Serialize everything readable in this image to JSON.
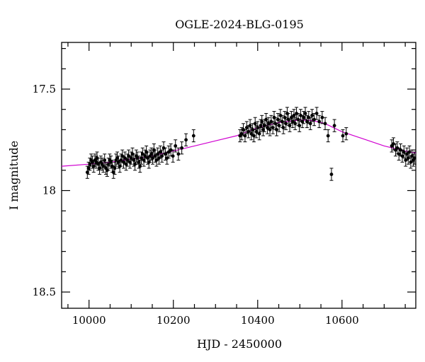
{
  "chart_data": {
    "type": "scatter",
    "title": "OGLE-2024-BLG-0195",
    "xlabel": "HJD - 2450000",
    "ylabel": "I magnitude",
    "xlim": [
      9935,
      10775
    ],
    "ylim": [
      18.58,
      17.27
    ],
    "y_inverted": true,
    "x_ticks": [
      10000,
      10200,
      10400,
      10600
    ],
    "x_tick_labels": [
      "10000",
      "10200",
      "10400",
      "10600"
    ],
    "y_ticks": [
      17.5,
      18,
      18.5
    ],
    "y_tick_labels": [
      "17.5",
      "18",
      "18.5"
    ],
    "grid": false,
    "colors": {
      "points": "#000000",
      "model": "#d000d0",
      "frame": "#000000"
    },
    "series": [
      {
        "type": "scatter",
        "error": 0.03,
        "points": [
          [
            9996,
            17.91
          ],
          [
            9999,
            17.89
          ],
          [
            10002,
            17.87
          ],
          [
            10005,
            17.85
          ],
          [
            10008,
            17.86
          ],
          [
            10011,
            17.88
          ],
          [
            10014,
            17.85
          ],
          [
            10017,
            17.86
          ],
          [
            10019,
            17.84
          ],
          [
            10022,
            17.87
          ],
          [
            10025,
            17.89
          ],
          [
            10028,
            17.86
          ],
          [
            10031,
            17.87
          ],
          [
            10034,
            17.88
          ],
          [
            10037,
            17.85
          ],
          [
            10040,
            17.89
          ],
          [
            10043,
            17.9
          ],
          [
            10046,
            17.87
          ],
          [
            10049,
            17.85
          ],
          [
            10052,
            17.86
          ],
          [
            10055,
            17.88
          ],
          [
            10058,
            17.91
          ],
          [
            10061,
            17.89
          ],
          [
            10064,
            17.85
          ],
          [
            10067,
            17.84
          ],
          [
            10070,
            17.86
          ],
          [
            10073,
            17.88
          ],
          [
            10076,
            17.85
          ],
          [
            10079,
            17.83
          ],
          [
            10082,
            17.86
          ],
          [
            10085,
            17.84
          ],
          [
            10088,
            17.87
          ],
          [
            10091,
            17.85
          ],
          [
            10094,
            17.83
          ],
          [
            10097,
            17.86
          ],
          [
            10100,
            17.84
          ],
          [
            10103,
            17.82
          ],
          [
            10106,
            17.85
          ],
          [
            10109,
            17.87
          ],
          [
            10112,
            17.83
          ],
          [
            10115,
            17.84
          ],
          [
            10118,
            17.86
          ],
          [
            10121,
            17.88
          ],
          [
            10124,
            17.84
          ],
          [
            10127,
            17.82
          ],
          [
            10130,
            17.85
          ],
          [
            10133,
            17.83
          ],
          [
            10136,
            17.81
          ],
          [
            10139,
            17.84
          ],
          [
            10142,
            17.86
          ],
          [
            10145,
            17.83
          ],
          [
            10148,
            17.82
          ],
          [
            10151,
            17.84
          ],
          [
            10154,
            17.8
          ],
          [
            10157,
            17.83
          ],
          [
            10160,
            17.85
          ],
          [
            10163,
            17.82
          ],
          [
            10166,
            17.84
          ],
          [
            10169,
            17.81
          ],
          [
            10173,
            17.83
          ],
          [
            10177,
            17.79
          ],
          [
            10181,
            17.82
          ],
          [
            10185,
            17.84
          ],
          [
            10189,
            17.81
          ],
          [
            10194,
            17.8
          ],
          [
            10199,
            17.83
          ],
          [
            10205,
            17.78
          ],
          [
            10212,
            17.82
          ],
          [
            10220,
            17.79
          ],
          [
            10230,
            17.75
          ],
          [
            10248,
            17.73
          ],
          [
            10358,
            17.73
          ],
          [
            10362,
            17.72
          ],
          [
            10366,
            17.7
          ],
          [
            10370,
            17.73
          ],
          [
            10374,
            17.69
          ],
          [
            10378,
            17.71
          ],
          [
            10382,
            17.68
          ],
          [
            10385,
            17.72
          ],
          [
            10388,
            17.7
          ],
          [
            10391,
            17.73
          ],
          [
            10394,
            17.67
          ],
          [
            10397,
            17.71
          ],
          [
            10400,
            17.69
          ],
          [
            10404,
            17.72
          ],
          [
            10407,
            17.68
          ],
          [
            10410,
            17.66
          ],
          [
            10413,
            17.7
          ],
          [
            10416,
            17.68
          ],
          [
            10420,
            17.65
          ],
          [
            10423,
            17.69
          ],
          [
            10426,
            17.67
          ],
          [
            10429,
            17.7
          ],
          [
            10432,
            17.66
          ],
          [
            10436,
            17.69
          ],
          [
            10439,
            17.64
          ],
          [
            10442,
            17.67
          ],
          [
            10445,
            17.7
          ],
          [
            10448,
            17.65
          ],
          [
            10451,
            17.68
          ],
          [
            10454,
            17.63
          ],
          [
            10458,
            17.66
          ],
          [
            10461,
            17.69
          ],
          [
            10464,
            17.64
          ],
          [
            10467,
            17.67
          ],
          [
            10470,
            17.62
          ],
          [
            10473,
            17.65
          ],
          [
            10476,
            17.68
          ],
          [
            10480,
            17.64
          ],
          [
            10483,
            17.66
          ],
          [
            10486,
            17.63
          ],
          [
            10489,
            17.67
          ],
          [
            10492,
            17.62
          ],
          [
            10496,
            17.65
          ],
          [
            10499,
            17.68
          ],
          [
            10502,
            17.63
          ],
          [
            10506,
            17.66
          ],
          [
            10509,
            17.64
          ],
          [
            10513,
            17.62
          ],
          [
            10517,
            17.66
          ],
          [
            10521,
            17.64
          ],
          [
            10525,
            17.67
          ],
          [
            10529,
            17.63
          ],
          [
            10534,
            17.65
          ],
          [
            10540,
            17.62
          ],
          [
            10546,
            17.66
          ],
          [
            10553,
            17.64
          ],
          [
            10560,
            17.67
          ],
          [
            10567,
            17.73
          ],
          [
            10575,
            17.92
          ],
          [
            10582,
            17.68
          ],
          [
            10602,
            17.73
          ],
          [
            10610,
            17.72
          ],
          [
            10718,
            17.78
          ],
          [
            10722,
            17.77
          ],
          [
            10727,
            17.8
          ],
          [
            10731,
            17.79
          ],
          [
            10735,
            17.82
          ],
          [
            10739,
            17.8
          ],
          [
            10743,
            17.83
          ],
          [
            10747,
            17.81
          ],
          [
            10751,
            17.85
          ],
          [
            10754,
            17.82
          ],
          [
            10757,
            17.84
          ],
          [
            10760,
            17.81
          ],
          [
            10763,
            17.86
          ],
          [
            10766,
            17.83
          ],
          [
            10769,
            17.85
          ],
          [
            10772,
            17.84
          ]
        ]
      },
      {
        "type": "line",
        "points": [
          [
            9935,
            17.88
          ],
          [
            10000,
            17.87
          ],
          [
            10050,
            17.86
          ],
          [
            10100,
            17.845
          ],
          [
            10150,
            17.83
          ],
          [
            10200,
            17.805
          ],
          [
            10250,
            17.78
          ],
          [
            10300,
            17.755
          ],
          [
            10350,
            17.73
          ],
          [
            10400,
            17.69
          ],
          [
            10450,
            17.665
          ],
          [
            10500,
            17.652
          ],
          [
            10530,
            17.655
          ],
          [
            10560,
            17.67
          ],
          [
            10600,
            17.71
          ],
          [
            10650,
            17.745
          ],
          [
            10700,
            17.78
          ],
          [
            10720,
            17.79
          ],
          [
            10750,
            17.805
          ],
          [
            10775,
            17.815
          ]
        ]
      }
    ]
  }
}
